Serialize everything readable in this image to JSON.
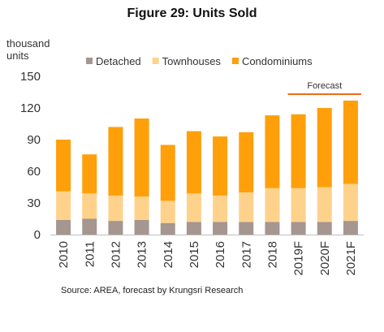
{
  "title": "Figure 29: Units Sold",
  "y_unit": [
    "thousand",
    "units"
  ],
  "source": "Source: AREA, forecast by Krungsri Research",
  "forecast_label": "Forecast",
  "colors": {
    "detached": "#a5968f",
    "townhouses": "#ffd28c",
    "condominiums": "#ff9f0a",
    "forecast_line": "#f26a16"
  },
  "chart_data": {
    "type": "bar",
    "stacked": true,
    "title": "Figure 29: Units Sold",
    "ylabel": "thousand units",
    "xlabel": "",
    "ylim": [
      0,
      150
    ],
    "yticks": [
      0,
      30,
      60,
      90,
      120,
      150
    ],
    "grid": false,
    "legend": "top",
    "categories": [
      "2010",
      "2011",
      "2012",
      "2013",
      "2014",
      "2015",
      "2016",
      "2017",
      "2018",
      "2019F",
      "2020F",
      "2021F"
    ],
    "series": [
      {
        "name": "Detached",
        "values": [
          14,
          15,
          13,
          14,
          11,
          12,
          12,
          12,
          12,
          12,
          12,
          13
        ]
      },
      {
        "name": "Townhouses",
        "values": [
          27,
          24,
          24,
          22,
          21,
          27,
          25,
          28,
          32,
          32,
          33,
          35
        ]
      },
      {
        "name": "Condominiums",
        "values": [
          49,
          37,
          65,
          74,
          53,
          59,
          56,
          57,
          69,
          70,
          75,
          79
        ]
      }
    ]
  }
}
